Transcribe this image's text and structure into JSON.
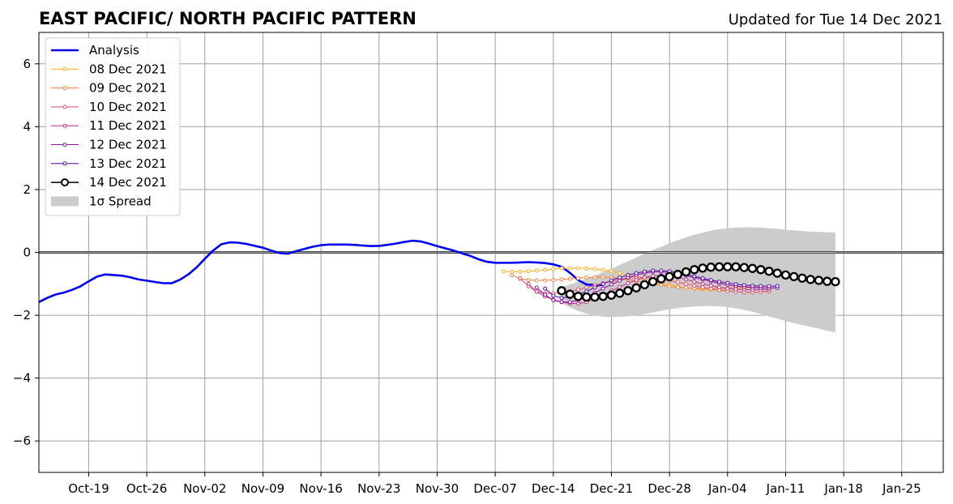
{
  "chart_data": {
    "type": "line",
    "title": "EAST PACIFIC/ NORTH PACIFIC PATTERN",
    "subtitle": "Updated for Tue 14 Dec 2021",
    "xlabel": "",
    "ylabel": "",
    "xlim": [
      "2021-10-13",
      "2022-01-30"
    ],
    "ylim": [
      -7,
      7
    ],
    "x_ticks": [
      "Oct-19",
      "Oct-26",
      "Nov-02",
      "Nov-09",
      "Nov-16",
      "Nov-23",
      "Nov-30",
      "Dec-07",
      "Dec-14",
      "Dec-21",
      "Dec-28",
      "Jan-04",
      "Jan-11",
      "Jan-18",
      "Jan-25"
    ],
    "x_tick_dates": [
      "2021-10-19",
      "2021-10-26",
      "2021-11-02",
      "2021-11-09",
      "2021-11-16",
      "2021-11-23",
      "2021-11-30",
      "2021-12-07",
      "2021-12-14",
      "2021-12-21",
      "2021-12-28",
      "2022-01-04",
      "2022-01-11",
      "2022-01-18",
      "2022-01-25"
    ],
    "y_ticks": [
      -6,
      -4,
      -2,
      0,
      2,
      4,
      6
    ],
    "y_tick_labels": [
      "−6",
      "−4",
      "−2",
      "0",
      "2",
      "4",
      "6"
    ],
    "grid": true,
    "zero_line": true,
    "legend_position": "top-left",
    "series": [
      {
        "name": "Analysis",
        "color": "#0000ee",
        "style": "analysis",
        "start": "2021-10-13",
        "values": [
          -1.58,
          -1.45,
          -1.34,
          -1.28,
          -1.19,
          -1.08,
          -0.92,
          -0.77,
          -0.7,
          -0.72,
          -0.74,
          -0.79,
          -0.86,
          -0.9,
          -0.94,
          -0.98,
          -0.98,
          -0.87,
          -0.7,
          -0.48,
          -0.2,
          0.06,
          0.26,
          0.32,
          0.31,
          0.27,
          0.21,
          0.15,
          0.06,
          -0.02,
          -0.04,
          0.04,
          0.11,
          0.18,
          0.23,
          0.25,
          0.25,
          0.25,
          0.24,
          0.22,
          0.2,
          0.21,
          0.24,
          0.28,
          0.33,
          0.37,
          0.35,
          0.28,
          0.2,
          0.13,
          0.06,
          -0.03,
          -0.11,
          -0.22,
          -0.3,
          -0.33,
          -0.33,
          -0.33,
          -0.32,
          -0.31,
          -0.32,
          -0.34,
          -0.38,
          -0.46,
          -0.65,
          -0.88,
          -1.02,
          -1.04,
          -1.04
        ]
      },
      {
        "name": "08 Dec 2021",
        "color": "#f9b32a",
        "style": "forecast",
        "start": "2021-12-08",
        "values": [
          -0.6,
          -0.62,
          -0.61,
          -0.6,
          -0.58,
          -0.56,
          -0.53,
          -0.51,
          -0.5,
          -0.5,
          -0.51,
          -0.53,
          -0.56,
          -0.6,
          -0.66,
          -0.72,
          -0.78,
          -0.85,
          -0.92,
          -0.98,
          -1.04,
          -1.09,
          -1.13,
          -1.16,
          -1.18,
          -1.19,
          -1.19,
          -1.18,
          -1.16,
          -1.14,
          -1.12
        ]
      },
      {
        "name": "09 Dec 2021",
        "color": "#f5874a",
        "style": "forecast",
        "start": "2021-12-09",
        "values": [
          -0.72,
          -0.84,
          -0.88,
          -0.89,
          -0.89,
          -0.88,
          -0.86,
          -0.84,
          -0.82,
          -0.8,
          -0.79,
          -0.79,
          -0.8,
          -0.82,
          -0.86,
          -0.91,
          -0.96,
          -1.0,
          -1.04,
          -1.08,
          -1.11,
          -1.13,
          -1.14,
          -1.15,
          -1.15,
          -1.14,
          -1.13,
          -1.11,
          -1.1,
          -1.1,
          -1.11
        ]
      },
      {
        "name": "10 Dec 2021",
        "color": "#e25d6d",
        "style": "forecast",
        "start": "2021-12-10",
        "values": [
          -0.82,
          -1.08,
          -1.25,
          -1.3,
          -1.3,
          -1.28,
          -1.24,
          -1.18,
          -1.12,
          -1.05,
          -0.98,
          -0.92,
          -0.86,
          -0.82,
          -0.8,
          -0.8,
          -0.82,
          -0.86,
          -0.9,
          -0.95,
          -1.0,
          -1.06,
          -1.11,
          -1.16,
          -1.2,
          -1.23,
          -1.25,
          -1.27,
          -1.27,
          -1.26,
          -1.24
        ]
      },
      {
        "name": "11 Dec 2021",
        "color": "#c03b8a",
        "style": "forecast",
        "start": "2021-12-11",
        "values": [
          -1.0,
          -1.25,
          -1.4,
          -1.5,
          -1.58,
          -1.62,
          -1.63,
          -1.58,
          -1.48,
          -1.35,
          -1.22,
          -1.1,
          -0.98,
          -0.88,
          -0.8,
          -0.75,
          -0.74,
          -0.76,
          -0.8,
          -0.86,
          -0.93,
          -1.0,
          -1.06,
          -1.11,
          -1.15,
          -1.17,
          -1.18,
          -1.19,
          -1.19,
          -1.18
        ]
      },
      {
        "name": "12 Dec 2021",
        "color": "#9114a0",
        "style": "forecast",
        "start": "2021-12-12",
        "values": [
          -1.12,
          -1.35,
          -1.52,
          -1.58,
          -1.58,
          -1.52,
          -1.42,
          -1.29,
          -1.15,
          -1.02,
          -0.9,
          -0.8,
          -0.72,
          -0.66,
          -0.62,
          -0.62,
          -0.64,
          -0.68,
          -0.74,
          -0.8,
          -0.86,
          -0.92,
          -0.98,
          -1.03,
          -1.07,
          -1.1,
          -1.12,
          -1.13,
          -1.13,
          -1.13
        ]
      },
      {
        "name": "13 Dec 2021",
        "color": "#5b13a6",
        "style": "forecast",
        "start": "2021-12-13",
        "values": [
          -1.15,
          -1.38,
          -1.45,
          -1.42,
          -1.34,
          -1.24,
          -1.12,
          -1.0,
          -0.89,
          -0.8,
          -0.72,
          -0.66,
          -0.61,
          -0.58,
          -0.58,
          -0.6,
          -0.64,
          -0.7,
          -0.76,
          -0.82,
          -0.88,
          -0.93,
          -0.97,
          -1.01,
          -1.04,
          -1.06,
          -1.07,
          -1.07,
          -1.07
        ]
      },
      {
        "name": "14 Dec 2021",
        "color": "#000000",
        "style": "current",
        "start": "2021-12-15",
        "values": [
          -1.22,
          -1.33,
          -1.4,
          -1.42,
          -1.42,
          -1.4,
          -1.36,
          -1.3,
          -1.22,
          -1.13,
          -1.03,
          -0.93,
          -0.84,
          -0.77,
          -0.7,
          -0.62,
          -0.55,
          -0.5,
          -0.47,
          -0.46,
          -0.46,
          -0.46,
          -0.48,
          -0.51,
          -0.55,
          -0.6,
          -0.66,
          -0.72,
          -0.77,
          -0.82,
          -0.86,
          -0.89,
          -0.92,
          -0.93
        ]
      }
    ],
    "spread": {
      "name": "1σ Spread",
      "color": "#cccccc",
      "start": "2021-12-15",
      "upper": [
        -1.1,
        -1.02,
        -0.93,
        -0.84,
        -0.74,
        -0.63,
        -0.52,
        -0.4,
        -0.28,
        -0.16,
        -0.04,
        0.07,
        0.18,
        0.29,
        0.39,
        0.48,
        0.56,
        0.63,
        0.69,
        0.74,
        0.77,
        0.79,
        0.8,
        0.8,
        0.79,
        0.77,
        0.75,
        0.72,
        0.7,
        0.68,
        0.66,
        0.65,
        0.64,
        0.64
      ],
      "lower": [
        -1.62,
        -1.75,
        -1.86,
        -1.95,
        -2.01,
        -2.05,
        -2.06,
        -2.05,
        -2.03,
        -2.0,
        -1.96,
        -1.91,
        -1.86,
        -1.81,
        -1.77,
        -1.74,
        -1.72,
        -1.71,
        -1.71,
        -1.72,
        -1.74,
        -1.78,
        -1.83,
        -1.89,
        -1.96,
        -2.04,
        -2.11,
        -2.18,
        -2.25,
        -2.31,
        -2.37,
        -2.43,
        -2.49,
        -2.55
      ]
    }
  }
}
